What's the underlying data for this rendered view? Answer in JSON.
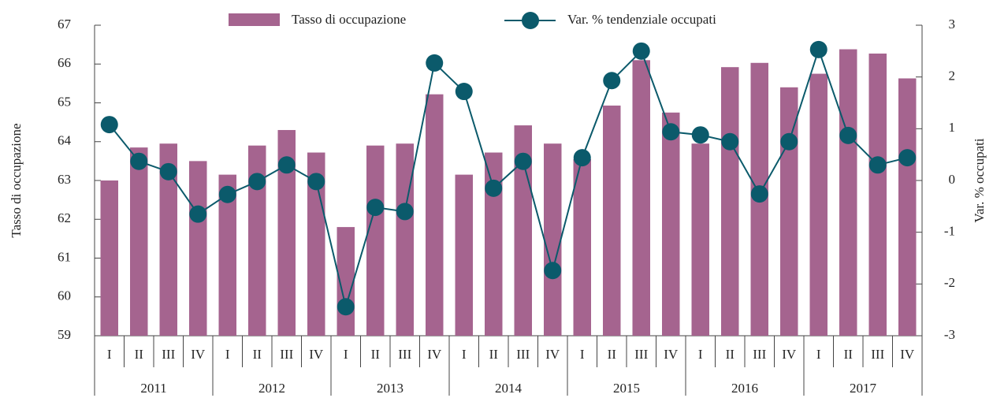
{
  "chart_data": {
    "type": "bar",
    "categories": [
      "I",
      "II",
      "III",
      "IV",
      "I",
      "II",
      "III",
      "IV",
      "I",
      "II",
      "III",
      "IV",
      "I",
      "II",
      "III",
      "IV",
      "I",
      "II",
      "III",
      "IV",
      "I",
      "II",
      "III",
      "IV",
      "I",
      "II",
      "III",
      "IV"
    ],
    "groups": [
      "2011",
      "2012",
      "2013",
      "2014",
      "2015",
      "2016",
      "2017"
    ],
    "ylabel": "Tasso di occupazione",
    "y2label": "Var. % occupati",
    "ylim": [
      59,
      67
    ],
    "yticks": [
      59,
      60,
      61,
      62,
      63,
      64,
      65,
      66,
      67
    ],
    "y2lim": [
      -3,
      3
    ],
    "y2ticks": [
      -3,
      -2,
      -1,
      0,
      1,
      2,
      3
    ],
    "legend": "top",
    "series": [
      {
        "name": "Tasso di occupazione",
        "type": "bar",
        "color": "#a5648f",
        "values": [
          63.0,
          63.85,
          63.95,
          63.5,
          63.15,
          63.9,
          64.3,
          63.72,
          61.8,
          63.9,
          63.95,
          65.22,
          63.15,
          63.72,
          64.42,
          63.95,
          63.55,
          64.93,
          66.1,
          64.75,
          63.95,
          65.92,
          66.03,
          65.4,
          65.75,
          66.38,
          66.27,
          65.63
        ]
      },
      {
        "name": "Var. % tendenziale occupati",
        "type": "line",
        "axis": "y2",
        "color": "#0b5a6b",
        "values": [
          1.08,
          0.37,
          0.17,
          -0.65,
          -0.27,
          -0.02,
          0.3,
          -0.02,
          -2.44,
          -0.52,
          -0.6,
          2.27,
          1.72,
          -0.15,
          0.37,
          -1.74,
          0.44,
          1.93,
          2.5,
          0.94,
          0.88,
          0.75,
          -0.26,
          0.75,
          2.53,
          0.87,
          0.3,
          0.44
        ]
      }
    ]
  }
}
